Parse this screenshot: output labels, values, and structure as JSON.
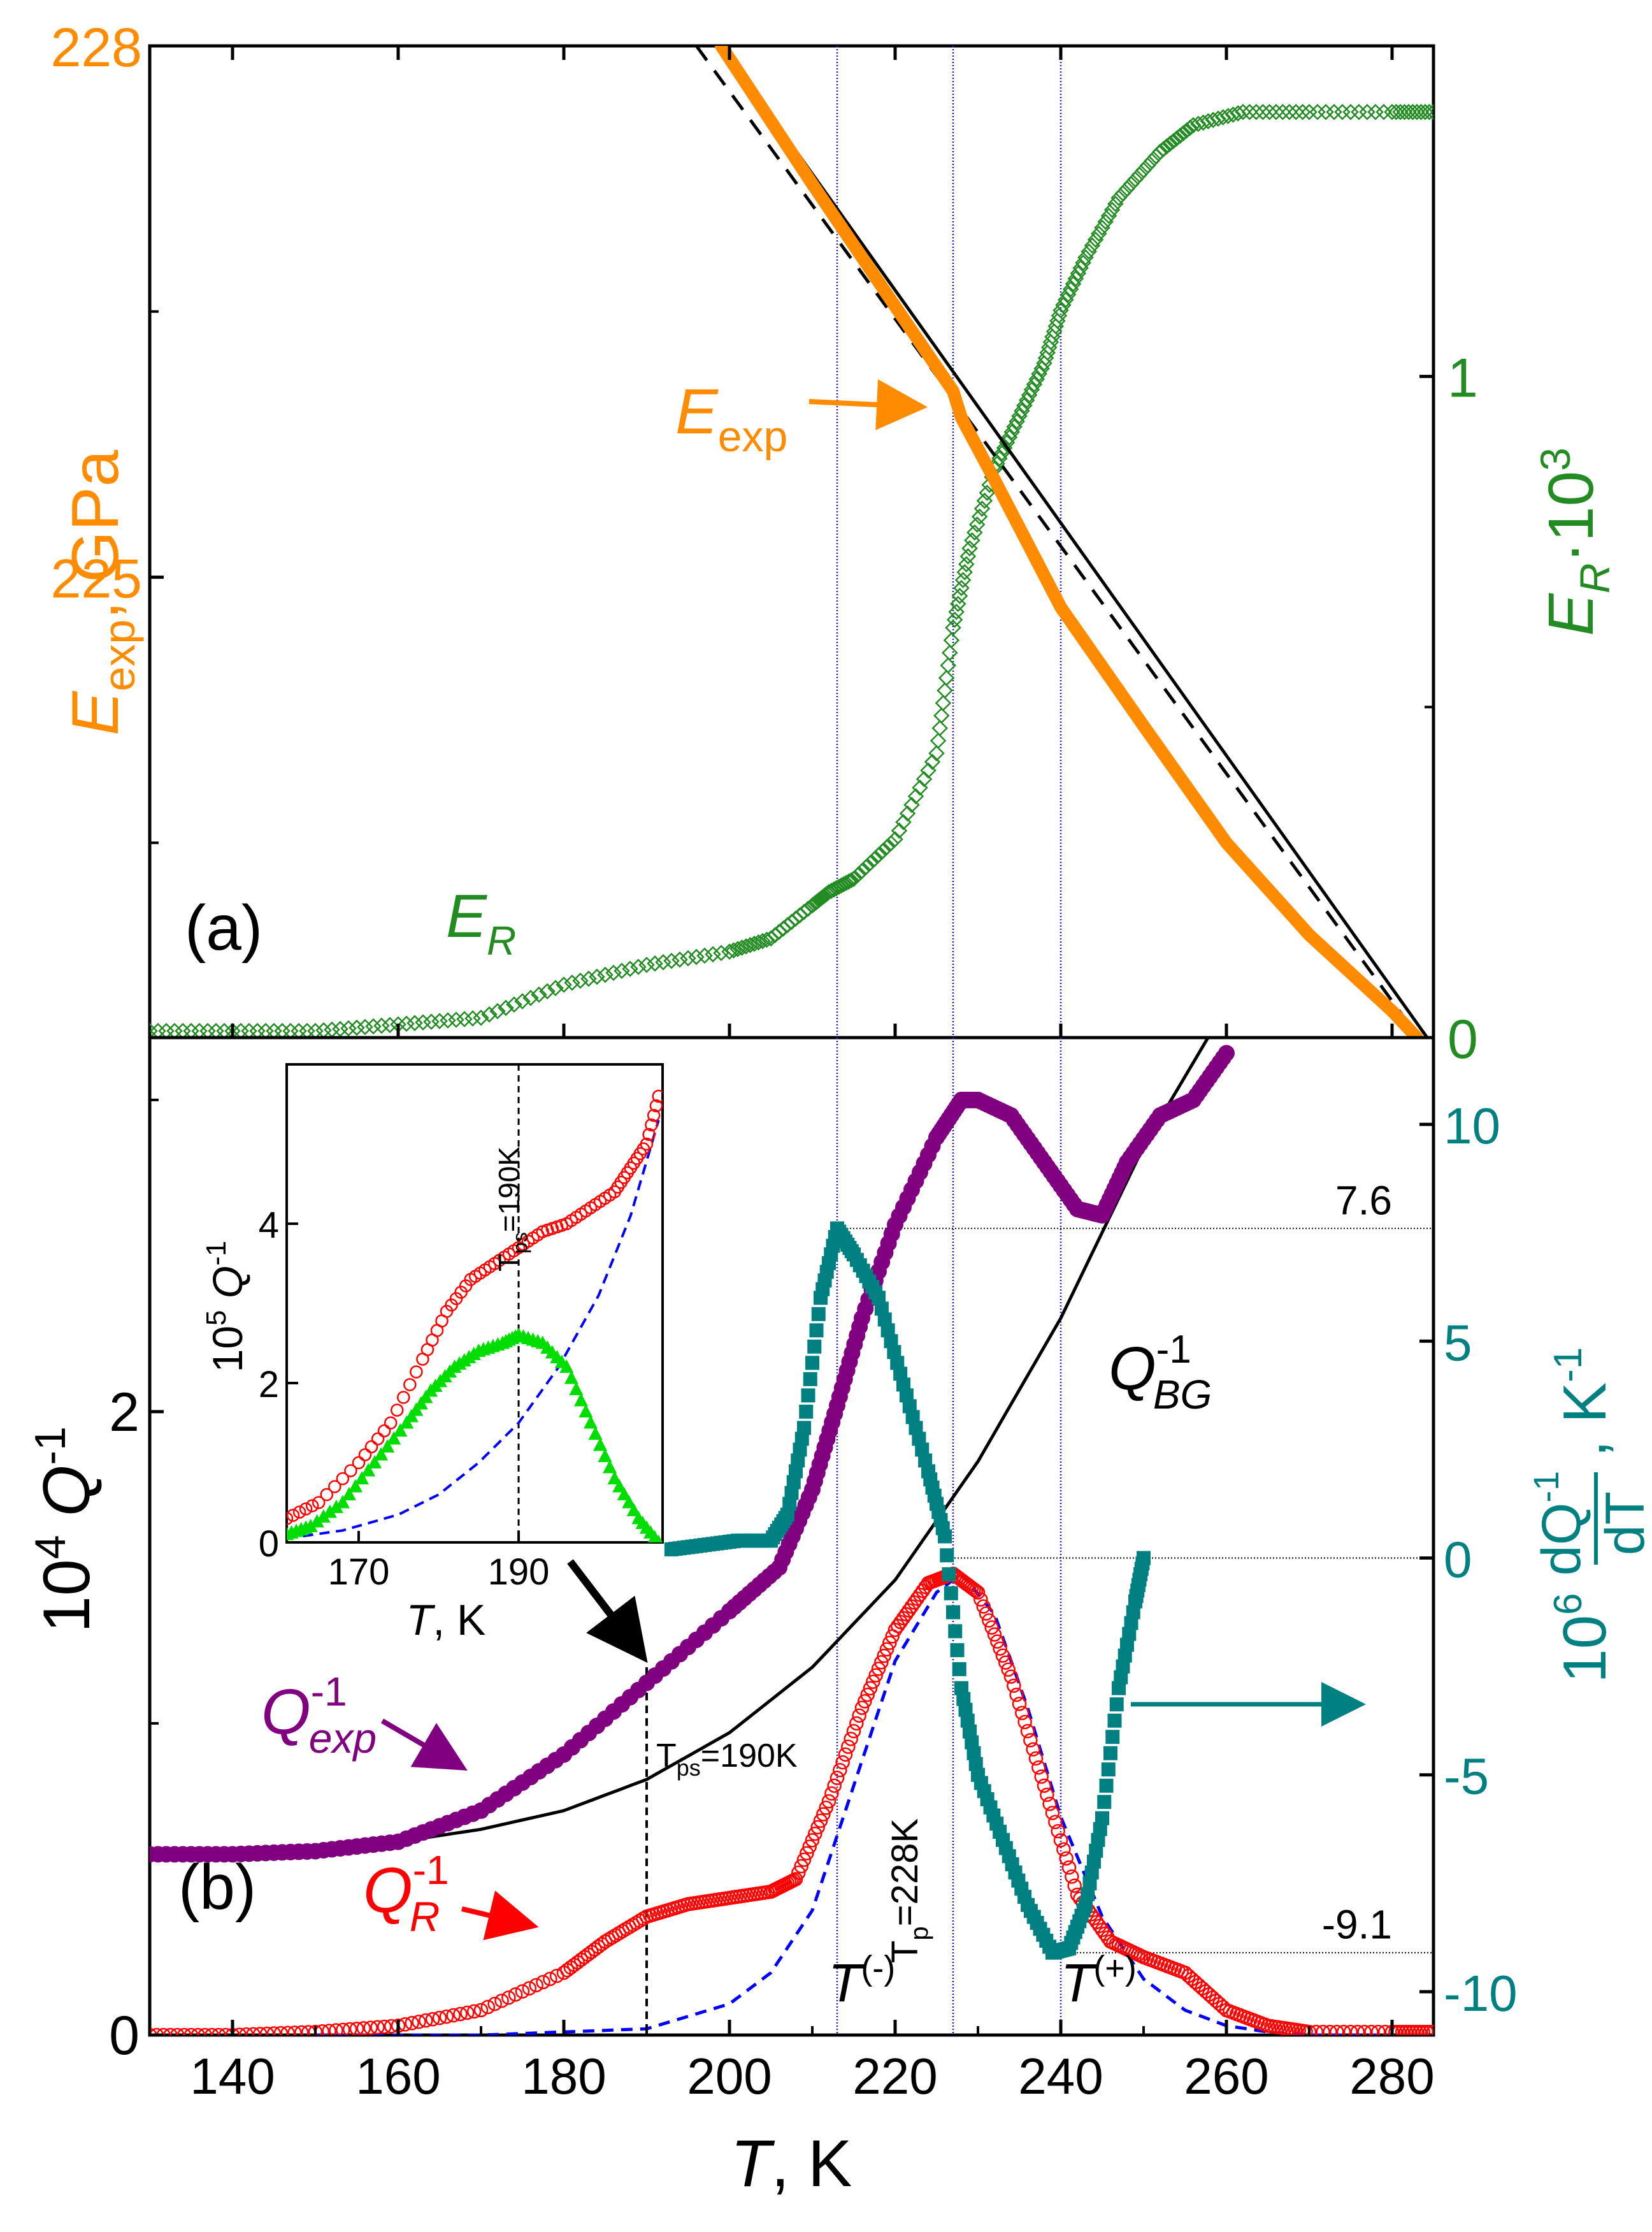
{
  "chart_data": [
    {
      "id": "a",
      "type": "line+scatter",
      "panel_label": "(a)",
      "xlim": [
        130,
        285
      ],
      "ylim_left": [
        222.4,
        228
      ],
      "ylim_right": [
        0,
        1.5
      ],
      "left_ticks": [
        225,
        228
      ],
      "left_tick_labels": [
        "225",
        "228"
      ],
      "right_ticks": [
        0,
        1
      ],
      "right_tick_labels": [
        "0",
        "1"
      ],
      "ylabel_left_main": "E",
      "ylabel_left_sub": "exp",
      "ylabel_left_rest": ", GPa",
      "ylabel_right_main": "E",
      "ylabel_right_sub": "R",
      "ylabel_right_rest": "·10",
      "ylabel_right_sup": "3",
      "colors": {
        "E_exp": "#ff8c00",
        "E_R": "#228b22",
        "fit": "#000000"
      },
      "series": [
        {
          "name": "E_exp fit (solid)",
          "style": "solid",
          "x": [
            199.0,
            285.0
          ],
          "y": [
            228.0,
            222.35
          ]
        },
        {
          "name": "E_exp fit (dashed)",
          "style": "dashed",
          "x": [
            196.0,
            284.0
          ],
          "y": [
            228.0,
            222.35
          ]
        },
        {
          "name": "E_exp",
          "style": "thick",
          "x": [
            199,
            210,
            220,
            227,
            228,
            232,
            240,
            250,
            260,
            270,
            280,
            283
          ],
          "y": [
            228.0,
            227.22,
            226.53,
            226.05,
            225.9,
            225.55,
            224.83,
            224.16,
            223.5,
            222.98,
            222.55,
            222.4
          ]
        },
        {
          "name": "E_R",
          "style": "diamond",
          "x": [
            130,
            140,
            150,
            160,
            170,
            180,
            190,
            200,
            205,
            210,
            212,
            215,
            220,
            225,
            227,
            229,
            232,
            235,
            238,
            240,
            243,
            247,
            252,
            256,
            262,
            270,
            280,
            285
          ],
          "y": [
            0.01,
            0.01,
            0.01,
            0.02,
            0.03,
            0.08,
            0.11,
            0.13,
            0.15,
            0.2,
            0.22,
            0.24,
            0.3,
            0.43,
            0.62,
            0.74,
            0.86,
            0.94,
            1.02,
            1.1,
            1.18,
            1.27,
            1.34,
            1.38,
            1.4,
            1.4,
            1.4,
            1.4
          ]
        }
      ],
      "vlines": [
        213,
        227,
        240
      ],
      "annotations": {
        "eexp_main": "E",
        "eexp_sub": "exp",
        "er_main": "E",
        "er_sub": "R"
      }
    },
    {
      "id": "b",
      "type": "scatter+line",
      "panel_label": "(b)",
      "xlim": [
        130,
        285
      ],
      "ylim_left": [
        0,
        3.2
      ],
      "ylim_right": [
        -11,
        12
      ],
      "xticks": [
        140,
        160,
        180,
        200,
        220,
        240,
        260,
        280
      ],
      "xtick_labels": [
        "140",
        "160",
        "180",
        "200",
        "220",
        "240",
        "260",
        "280"
      ],
      "left_ticks": [
        0,
        2
      ],
      "left_tick_labels": [
        "0",
        "2"
      ],
      "right_ticks": [
        10,
        5,
        0,
        -5,
        -10
      ],
      "right_tick_labels": [
        "10",
        "5",
        "0",
        "-5",
        "-10"
      ],
      "xlabel_main": "T",
      "xlabel_rest": ", K",
      "ylabel_left": "10",
      "ylabel_left_sup": "4",
      "ylabel_left_rest": " Q",
      "ylabel_left_sup2": "-1",
      "ylabel_right_prefix": "10",
      "ylabel_right_sup": "6",
      "ylabel_right_num": "dQ",
      "ylabel_right_num_sup": "-1",
      "ylabel_right_den": "dT",
      "ylabel_right_unit": ", K",
      "ylabel_right_unit_sup": "-1",
      "colors": {
        "Q_exp": "#800080",
        "Q_R": "#ff0000",
        "Q_BG": "#000000",
        "dQdT": "#008080",
        "fit_dashed": "#0000ff"
      },
      "series": [
        {
          "name": "Q_exp",
          "axis": "left",
          "x": [
            130,
            140,
            150,
            160,
            170,
            180,
            190,
            200,
            206,
            210,
            213,
            216,
            220,
            225,
            228,
            230,
            234,
            238,
            242,
            245,
            248,
            252,
            256,
            260
          ],
          "y": [
            0.58,
            0.58,
            0.59,
            0.62,
            0.72,
            0.9,
            1.13,
            1.36,
            1.5,
            1.75,
            2.02,
            2.3,
            2.6,
            2.88,
            3.0,
            3.0,
            2.95,
            2.8,
            2.65,
            2.63,
            2.8,
            2.95,
            3.0,
            3.15
          ]
        },
        {
          "name": "Q_R",
          "axis": "left",
          "x": [
            130,
            140,
            150,
            160,
            170,
            180,
            185,
            190,
            195,
            200,
            205,
            208,
            212,
            216,
            220,
            224,
            227,
            230,
            234,
            238,
            242,
            246,
            250,
            255,
            260,
            265,
            270,
            280,
            285
          ],
          "y": [
            0.0,
            0.0,
            0.01,
            0.03,
            0.08,
            0.2,
            0.3,
            0.38,
            0.42,
            0.44,
            0.46,
            0.5,
            0.75,
            1.05,
            1.3,
            1.45,
            1.48,
            1.42,
            1.15,
            0.8,
            0.45,
            0.3,
            0.25,
            0.2,
            0.08,
            0.03,
            0.01,
            0.01,
            0.01
          ]
        },
        {
          "name": "Q_BG",
          "axis": "left",
          "x": [
            130,
            150,
            160,
            170,
            180,
            190,
            200,
            210,
            220,
            230,
            240,
            250,
            260
          ],
          "y": [
            0.58,
            0.6,
            0.62,
            0.66,
            0.72,
            0.82,
            0.97,
            1.18,
            1.46,
            1.84,
            2.3,
            2.85,
            3.3
          ]
        },
        {
          "name": "Q_R fit (dashed)",
          "axis": "left",
          "x": [
            150,
            170,
            180,
            190,
            200,
            205,
            210,
            215,
            220,
            225,
            228,
            232,
            236,
            240,
            245,
            250,
            255,
            260,
            265,
            270,
            280
          ],
          "y": [
            0.0,
            0.0,
            0.01,
            0.02,
            0.1,
            0.2,
            0.4,
            0.8,
            1.2,
            1.42,
            1.48,
            1.35,
            1.05,
            0.7,
            0.38,
            0.18,
            0.08,
            0.03,
            0.01,
            0.0,
            0.0
          ]
        },
        {
          "name": "dQ/dT",
          "axis": "right",
          "x": [
            193,
            197,
            201,
            205,
            207,
            209,
            211,
            213,
            215,
            218,
            221,
            224,
            226,
            228,
            230,
            233,
            236,
            239,
            241,
            243,
            245,
            247,
            249,
            250
          ],
          "y": [
            0.2,
            0.3,
            0.4,
            0.4,
            1.0,
            3.0,
            6.0,
            7.6,
            7.0,
            6.0,
            4.0,
            2.0,
            0.5,
            -3.0,
            -5.0,
            -6.5,
            -8.0,
            -9.1,
            -9.0,
            -8.0,
            -6.0,
            -3.0,
            -1.0,
            0.0
          ]
        }
      ],
      "vlines": [
        213,
        227,
        240
      ],
      "hlines": [
        {
          "y": 7.6,
          "axis": "right",
          "x0": 213,
          "label": "7.6"
        },
        {
          "y": 0,
          "axis": "right",
          "x0": 226,
          "label": ""
        },
        {
          "y": -9.1,
          "axis": "right",
          "x0": 240,
          "label": "-9.1"
        }
      ],
      "tps_line_x": 190,
      "annotations": {
        "qexp_main": "Q",
        "qexp_sup": "-1",
        "qexp_sub": "exp",
        "qr_main": "Q",
        "qr_sup": "-1",
        "qr_sub": "R",
        "qbg_main": "Q",
        "qbg_sup": "-1",
        "qbg_sub": "BG",
        "tps_label_T": "T",
        "tps_label_sub": "ps",
        "tps_label_rest": "=190K",
        "tp_label_T": "T",
        "tp_label_sub": "p",
        "tp_label_rest": "=228K",
        "tminus_T": "T",
        "tminus_sup": "(-)",
        "tplus_T": "T",
        "tplus_sup": "(+)"
      }
    },
    {
      "id": "inset",
      "type": "scatter",
      "xlim": [
        161,
        208
      ],
      "ylim": [
        0,
        6
      ],
      "xticks": [
        170,
        190
      ],
      "xtick_labels": [
        "170",
        "190"
      ],
      "yticks": [
        0,
        2,
        4
      ],
      "ytick_labels": [
        "0",
        "2",
        "4"
      ],
      "xlabel_main": "T",
      "xlabel_rest": ", K",
      "ylabel_prefix": "10",
      "ylabel_sup": "5",
      "ylabel_rest": " Q",
      "ylabel_sup2": "-1",
      "vline_x": 190,
      "vline_label_T": "T",
      "vline_label_sub": "ps",
      "vline_label_rest": "=190K",
      "colors": {
        "red": "#ff0000",
        "green": "#00dd00",
        "blue": "#0000ff"
      },
      "series": [
        {
          "name": "Q_R (red open circles)",
          "x": [
            161,
            165,
            170,
            174,
            178,
            181,
            184,
            187,
            190,
            193,
            196,
            199,
            202,
            204,
            206,
            207.5
          ],
          "y": [
            0.3,
            0.5,
            1.0,
            1.5,
            2.3,
            2.9,
            3.3,
            3.5,
            3.7,
            3.9,
            4.0,
            4.2,
            4.4,
            4.7,
            5.0,
            5.6
          ]
        },
        {
          "name": "green triangles",
          "x": [
            161,
            164,
            168,
            172,
            176,
            179,
            182,
            185,
            188,
            190,
            193,
            196,
            199,
            202,
            205,
            207.5
          ],
          "y": [
            0.1,
            0.2,
            0.5,
            1.0,
            1.5,
            1.9,
            2.2,
            2.4,
            2.5,
            2.6,
            2.5,
            2.2,
            1.5,
            0.8,
            0.3,
            0.0
          ]
        },
        {
          "name": "blue dashed",
          "x": [
            161,
            168,
            175,
            180,
            185,
            190,
            195,
            200,
            204,
            207.5
          ],
          "y": [
            0.05,
            0.15,
            0.35,
            0.6,
            1.0,
            1.5,
            2.2,
            3.1,
            4.1,
            5.3
          ]
        }
      ]
    }
  ]
}
